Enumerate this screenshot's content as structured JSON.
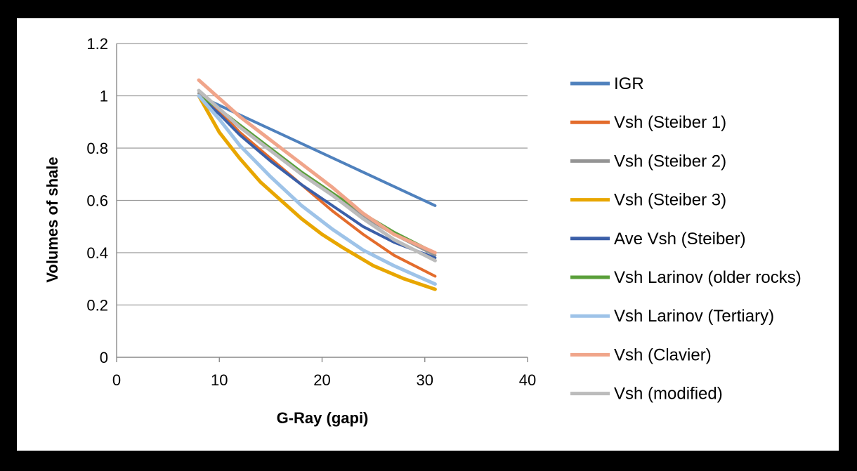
{
  "chart_data": {
    "type": "line",
    "title": "",
    "xlabel": "G-Ray (gapi)",
    "ylabel": "Volumes of shale",
    "xlim": [
      0,
      40
    ],
    "ylim": [
      0,
      1.2
    ],
    "x_ticks": [
      "0",
      "10",
      "20",
      "30",
      "40"
    ],
    "y_ticks": [
      "0",
      "0.2",
      "0.4",
      "0.6",
      "0.8",
      "1",
      "1.2"
    ],
    "grid": "horizontal",
    "legend_position": "right",
    "series": [
      {
        "name": "IGR",
        "color": "#4f81bd",
        "width": 4,
        "x": [
          8,
          31
        ],
        "y": [
          1.0,
          0.58
        ]
      },
      {
        "name": "Vsh (Steiber 1)",
        "color": "#e36c2c",
        "width": 4,
        "x": [
          8,
          10,
          12,
          15,
          18,
          21,
          24,
          27,
          31
        ],
        "y": [
          1.0,
          0.94,
          0.86,
          0.76,
          0.66,
          0.56,
          0.47,
          0.39,
          0.31
        ]
      },
      {
        "name": "Vsh (Steiber 2)",
        "color": "#949494",
        "width": 4,
        "x": [
          8,
          10,
          12,
          15,
          18,
          21,
          24,
          27,
          31
        ],
        "y": [
          1.01,
          0.95,
          0.88,
          0.79,
          0.7,
          0.62,
          0.54,
          0.47,
          0.39
        ]
      },
      {
        "name": "Vsh (Steiber 3)",
        "color": "#e8a600",
        "width": 5,
        "x": [
          8,
          10,
          12,
          14,
          16,
          18,
          20,
          22,
          25,
          28,
          31
        ],
        "y": [
          1.0,
          0.86,
          0.76,
          0.67,
          0.6,
          0.53,
          0.47,
          0.42,
          0.35,
          0.3,
          0.26
        ]
      },
      {
        "name": "Ave Vsh (Steiber)",
        "color": "#3b5fa8",
        "width": 4,
        "x": [
          8,
          10,
          12,
          15,
          18,
          21,
          24,
          27,
          31
        ],
        "y": [
          1.0,
          0.93,
          0.85,
          0.75,
          0.66,
          0.58,
          0.5,
          0.44,
          0.38
        ]
      },
      {
        "name": "Vsh Larinov (older rocks)",
        "color": "#5a9f3a",
        "width": 3,
        "x": [
          8,
          10,
          12,
          15,
          18,
          21,
          24,
          27,
          31
        ],
        "y": [
          1.0,
          0.95,
          0.89,
          0.8,
          0.71,
          0.63,
          0.55,
          0.48,
          0.4
        ]
      },
      {
        "name": "Vsh Larinov (Tertiary)",
        "color": "#9ec3e8",
        "width": 5,
        "x": [
          8,
          10,
          12,
          15,
          18,
          21,
          24,
          27,
          31
        ],
        "y": [
          1.0,
          0.91,
          0.81,
          0.69,
          0.58,
          0.49,
          0.41,
          0.35,
          0.28
        ]
      },
      {
        "name": "Vsh (Clavier)",
        "color": "#f0a58a",
        "width": 5,
        "x": [
          8,
          10,
          12,
          15,
          18,
          21,
          24,
          27,
          31
        ],
        "y": [
          1.06,
          0.99,
          0.92,
          0.83,
          0.74,
          0.65,
          0.55,
          0.47,
          0.4
        ]
      },
      {
        "name": "Vsh (modified)",
        "color": "#bcbcbc",
        "width": 5,
        "x": [
          8,
          10,
          12,
          15,
          18,
          21,
          24,
          27,
          31
        ],
        "y": [
          1.02,
          0.95,
          0.88,
          0.79,
          0.7,
          0.62,
          0.53,
          0.45,
          0.37
        ]
      }
    ]
  }
}
